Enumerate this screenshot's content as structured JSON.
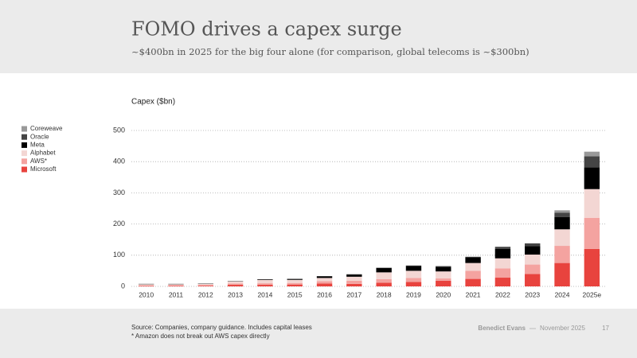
{
  "chart_data": {
    "type": "stacked_bar",
    "title": "FOMO drives a capex surge",
    "subtitle": "~$400bn in 2025 for the big four alone (for comparison, global telecoms is ~$300bn)",
    "y_label": "Capex ($bn)",
    "categories": [
      "2010",
      "2011",
      "2012",
      "2013",
      "2014",
      "2015",
      "2016",
      "2017",
      "2018",
      "2019",
      "2020",
      "2021",
      "2022",
      "2023",
      "2024",
      "2025e"
    ],
    "series": [
      {
        "name": "Microsoft",
        "color": "#e8433e",
        "values": [
          2,
          2,
          2,
          5,
          5,
          6,
          9,
          8,
          12,
          14,
          18,
          24,
          28,
          40,
          75,
          120
        ]
      },
      {
        "name": "AWS*",
        "color": "#f4a3a0",
        "values": [
          1,
          2,
          3,
          4,
          5,
          5,
          8,
          10,
          11,
          13,
          8,
          26,
          30,
          30,
          55,
          100
        ]
      },
      {
        "name": "Alphabet",
        "color": "#f3d6d3",
        "values": [
          4,
          3,
          3,
          7,
          11,
          10,
          10,
          13,
          22,
          23,
          22,
          25,
          32,
          32,
          53,
          92
        ]
      },
      {
        "name": "Meta",
        "color": "#000000",
        "values": [
          1,
          1,
          1,
          1,
          2,
          3,
          5,
          7,
          14,
          15,
          15,
          18,
          30,
          27,
          39,
          70
        ]
      },
      {
        "name": "Oracle",
        "color": "#444444",
        "values": [
          0,
          0,
          0,
          0,
          0,
          0,
          1,
          1,
          1,
          2,
          2,
          2,
          7,
          9,
          14,
          35
        ]
      },
      {
        "name": "Coreweave",
        "color": "#999999",
        "values": [
          0,
          0,
          0,
          0,
          0,
          0,
          0,
          0,
          0,
          0,
          0,
          0,
          0,
          0,
          8,
          15
        ]
      }
    ],
    "ylim": [
      0,
      500
    ],
    "yticks": [
      0,
      100,
      200,
      300,
      400,
      500
    ],
    "grid": true,
    "legend": "left"
  },
  "footer": {
    "source": "Source: Companies, company guidance. Includes capital leases",
    "note": "* Amazon does not break out AWS capex directly",
    "author": "Benedict Evans",
    "date": "November 2025",
    "page": "17"
  }
}
